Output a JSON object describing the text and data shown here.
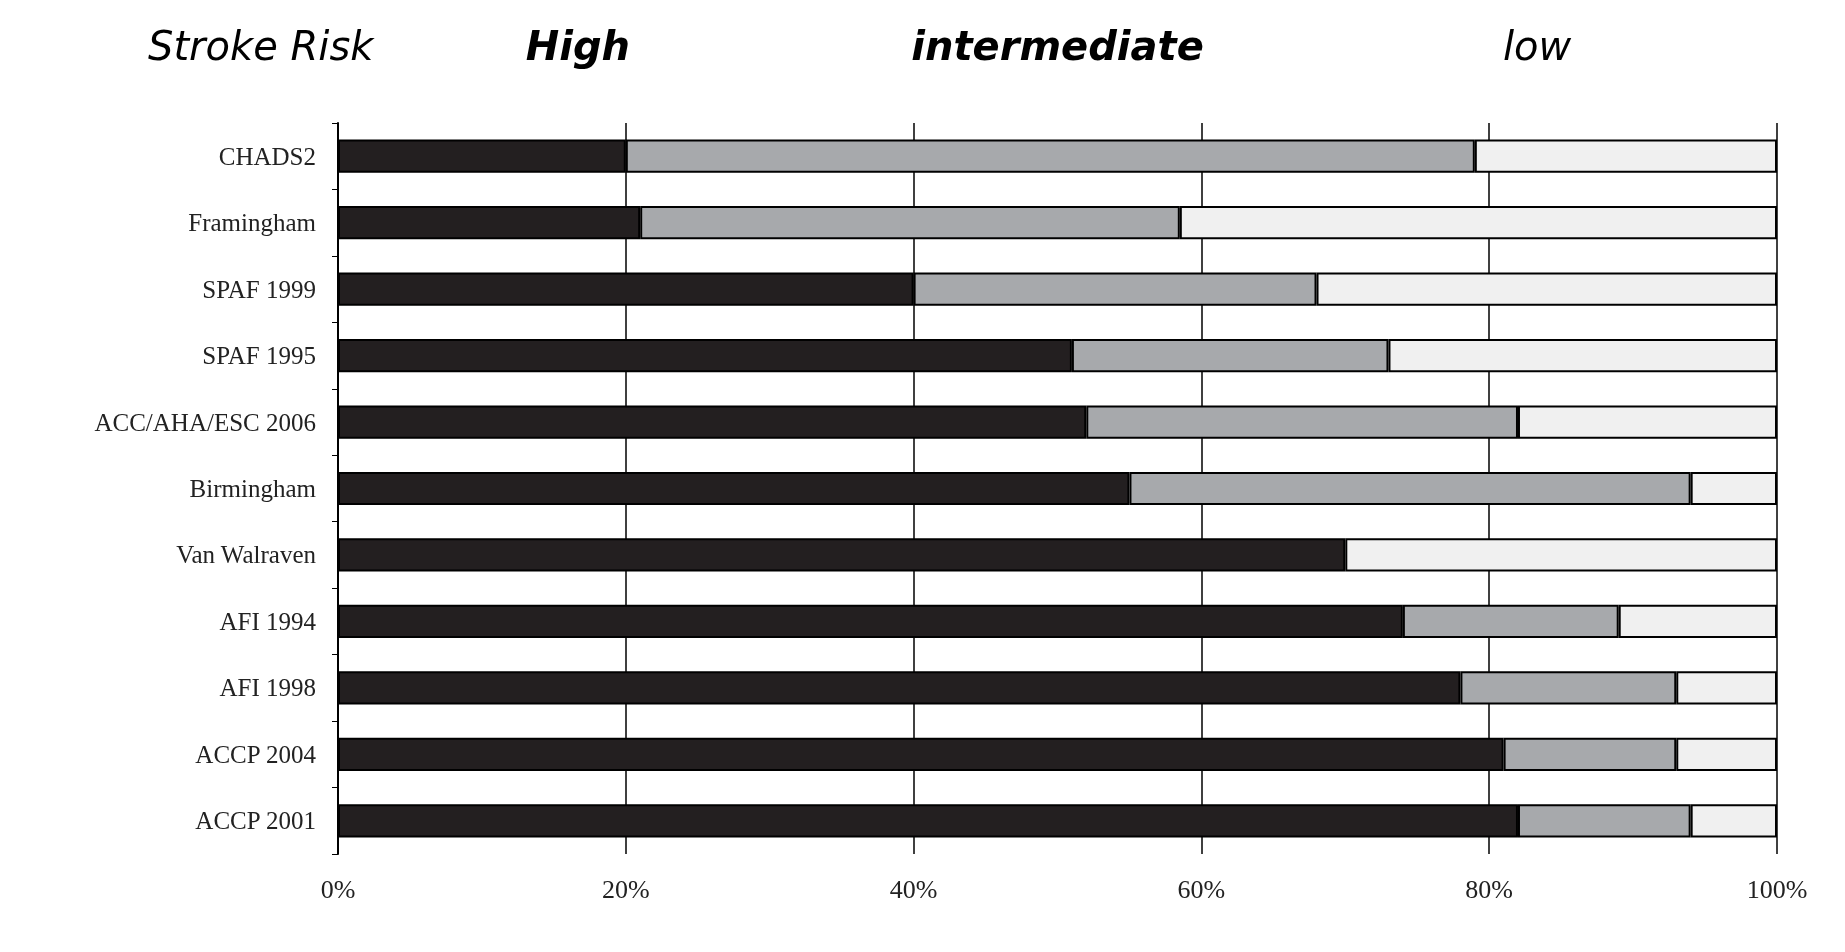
{
  "chart_data": {
    "type": "bar",
    "orientation": "horizontal",
    "stacked": true,
    "legend_title": "Stroke Risk",
    "legend": "top",
    "categories": [
      "CHADS2",
      "Framingham",
      "SPAF 1999",
      "SPAF 1995",
      "ACC/AHA/ESC 2006",
      "Birmingham",
      "Van Walraven",
      "AFI 1994",
      "AFI 1998",
      "ACCP 2004",
      "ACCP 2001"
    ],
    "series": [
      {
        "name": "High",
        "color": "#231f20",
        "values": [
          20,
          21,
          40,
          51,
          52,
          55,
          70,
          74,
          78,
          81,
          82
        ]
      },
      {
        "name": "intermediate",
        "color": "#a7a9ac",
        "values": [
          59,
          37.5,
          28,
          22,
          30,
          39,
          null,
          15,
          15,
          12,
          12
        ]
      },
      {
        "name": "low",
        "color": "#f0f0f0",
        "values": [
          21,
          41.5,
          32,
          27,
          18,
          6,
          30,
          11,
          7,
          7,
          6
        ]
      }
    ],
    "xlim": [
      0,
      100
    ],
    "xticks": [
      {
        "value": 0,
        "label": "0%"
      },
      {
        "value": 20,
        "label": "20%"
      },
      {
        "value": 40,
        "label": "40%"
      },
      {
        "value": 60,
        "label": "60%"
      },
      {
        "value": 80,
        "label": "80%"
      },
      {
        "value": 100,
        "label": "100%"
      }
    ],
    "grid": "x"
  }
}
